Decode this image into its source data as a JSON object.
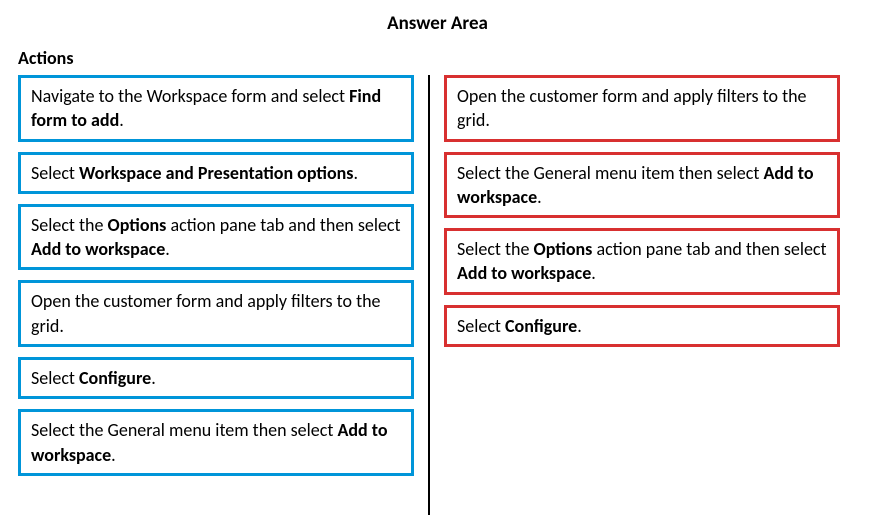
{
  "title": "Answer Area",
  "sections": {
    "actions_heading": "Actions"
  },
  "colors": {
    "blue": "#0095d9",
    "red": "#d83030",
    "text": "#000000",
    "bg": "#ffffff"
  },
  "left_items": [
    {
      "segments": [
        {
          "t": "Navigate to the Workspace form and select ",
          "b": false
        },
        {
          "t": "Find form to add",
          "b": true
        },
        {
          "t": ".",
          "b": false
        }
      ]
    },
    {
      "segments": [
        {
          "t": "Select ",
          "b": false
        },
        {
          "t": "Workspace and Presentation options",
          "b": true
        },
        {
          "t": ".",
          "b": false
        }
      ]
    },
    {
      "segments": [
        {
          "t": "Select the ",
          "b": false
        },
        {
          "t": "Options",
          "b": true
        },
        {
          "t": " action pane tab and then select ",
          "b": false
        },
        {
          "t": "Add to workspace",
          "b": true
        },
        {
          "t": ".",
          "b": false
        }
      ]
    },
    {
      "segments": [
        {
          "t": "Open the customer form and apply filters to the grid.",
          "b": false
        }
      ]
    },
    {
      "segments": [
        {
          "t": "Select ",
          "b": false
        },
        {
          "t": "Configure",
          "b": true
        },
        {
          "t": ".",
          "b": false
        }
      ]
    },
    {
      "segments": [
        {
          "t": "Select the General menu item then select ",
          "b": false
        },
        {
          "t": "Add to workspace",
          "b": true
        },
        {
          "t": ".",
          "b": false
        }
      ]
    }
  ],
  "right_items": [
    {
      "segments": [
        {
          "t": "Open the customer form and apply filters to the grid.",
          "b": false
        }
      ]
    },
    {
      "segments": [
        {
          "t": "Select the General menu item then select ",
          "b": false
        },
        {
          "t": "Add to workspace",
          "b": true
        },
        {
          "t": ".",
          "b": false
        }
      ]
    },
    {
      "segments": [
        {
          "t": "Select the ",
          "b": false
        },
        {
          "t": "Options",
          "b": true
        },
        {
          "t": " action pane tab and then select ",
          "b": false
        },
        {
          "t": "Add to workspace",
          "b": true
        },
        {
          "t": ".",
          "b": false
        }
      ]
    },
    {
      "segments": [
        {
          "t": "Select ",
          "b": false
        },
        {
          "t": "Configure",
          "b": true
        },
        {
          "t": ".",
          "b": false
        }
      ]
    }
  ]
}
